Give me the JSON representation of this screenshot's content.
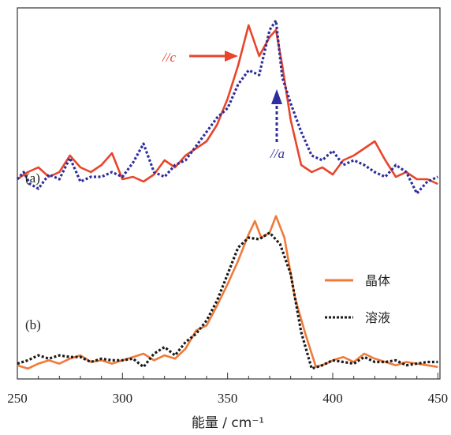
{
  "chart_data": {
    "type": "line",
    "xlabel": "能量 / cm⁻¹",
    "xlim": [
      250,
      451
    ],
    "x_ticks": [
      250,
      300,
      350,
      400,
      450
    ],
    "y_ticks_shown": false,
    "grid": false,
    "panels": [
      {
        "label": "(a)",
        "annotations": [
          {
            "text": "//c",
            "color": "#e8452b",
            "arrow": "solid-right",
            "points_to_x": 360
          },
          {
            "text": "//a",
            "color": "#2d2f9c",
            "arrow": "dotted-up",
            "points_to_x": 372
          }
        ],
        "series": [
          {
            "color": "#e8452b",
            "style": "solid",
            "x": [
              250,
              255,
              260,
              265,
              270,
              275,
              280,
              285,
              290,
              295,
              300,
              305,
              310,
              315,
              320,
              325,
              330,
              335,
              340,
              345,
              350,
              355,
              360,
              365,
              370,
              373,
              376,
              380,
              385,
              390,
              395,
              400,
              405,
              410,
              415,
              420,
              425,
              430,
              435,
              440,
              445,
              450
            ],
            "y": [
              0.3,
              0.33,
              0.35,
              0.31,
              0.33,
              0.4,
              0.35,
              0.33,
              0.36,
              0.41,
              0.3,
              0.31,
              0.29,
              0.32,
              0.38,
              0.35,
              0.4,
              0.43,
              0.46,
              0.53,
              0.64,
              0.78,
              0.95,
              0.82,
              0.9,
              0.93,
              0.78,
              0.55,
              0.36,
              0.33,
              0.35,
              0.32,
              0.38,
              0.4,
              0.43,
              0.46,
              0.38,
              0.31,
              0.33,
              0.3,
              0.3,
              0.28
            ]
          },
          {
            "color": "#2d2f9c",
            "style": "dotted",
            "x": [
              250,
              253,
              256,
              260,
              265,
              270,
              275,
              280,
              285,
              290,
              295,
              300,
              305,
              310,
              315,
              320,
              325,
              330,
              335,
              340,
              345,
              350,
              355,
              360,
              365,
              370,
              373,
              376,
              380,
              385,
              390,
              395,
              400,
              405,
              410,
              415,
              420,
              425,
              430,
              435,
              440,
              445,
              450
            ],
            "y": [
              0.3,
              0.33,
              0.28,
              0.26,
              0.32,
              0.3,
              0.39,
              0.29,
              0.31,
              0.31,
              0.33,
              0.31,
              0.37,
              0.45,
              0.33,
              0.31,
              0.36,
              0.38,
              0.44,
              0.5,
              0.56,
              0.6,
              0.7,
              0.76,
              0.74,
              0.93,
              0.97,
              0.73,
              0.62,
              0.5,
              0.4,
              0.38,
              0.42,
              0.36,
              0.38,
              0.36,
              0.33,
              0.31,
              0.36,
              0.33,
              0.24,
              0.29,
              0.31
            ]
          }
        ]
      },
      {
        "label": "(b)",
        "series": [
          {
            "name": "晶体",
            "color": "#f07a3a",
            "style": "solid",
            "x": [
              250,
              255,
              260,
              265,
              270,
              275,
              280,
              285,
              290,
              295,
              300,
              305,
              310,
              315,
              320,
              325,
              330,
              335,
              340,
              345,
              350,
              355,
              360,
              363,
              366,
              370,
              373,
              377,
              382,
              387,
              392,
              397,
              400,
              405,
              410,
              415,
              420,
              425,
              430,
              435,
              440,
              445,
              450
            ],
            "y": [
              0.03,
              0.01,
              0.04,
              0.06,
              0.04,
              0.07,
              0.09,
              0.05,
              0.06,
              0.04,
              0.06,
              0.08,
              0.1,
              0.06,
              0.09,
              0.07,
              0.13,
              0.24,
              0.27,
              0.39,
              0.52,
              0.66,
              0.82,
              0.9,
              0.8,
              0.83,
              0.93,
              0.8,
              0.44,
              0.22,
              0.02,
              0.04,
              0.06,
              0.08,
              0.05,
              0.1,
              0.07,
              0.05,
              0.03,
              0.05,
              0.04,
              0.03,
              0.02
            ]
          },
          {
            "name": "溶液",
            "color": "#1a1a1a",
            "style": "dotted",
            "x": [
              250,
              255,
              260,
              265,
              270,
              275,
              280,
              285,
              290,
              295,
              300,
              305,
              310,
              315,
              320,
              325,
              330,
              335,
              340,
              345,
              350,
              355,
              360,
              365,
              370,
              375,
              380,
              385,
              390,
              395,
              400,
              405,
              410,
              415,
              420,
              425,
              430,
              435,
              440,
              445,
              450
            ],
            "y": [
              0.04,
              0.06,
              0.09,
              0.07,
              0.09,
              0.08,
              0.08,
              0.05,
              0.07,
              0.06,
              0.06,
              0.07,
              0.02,
              0.1,
              0.14,
              0.09,
              0.17,
              0.22,
              0.3,
              0.42,
              0.58,
              0.74,
              0.8,
              0.79,
              0.83,
              0.76,
              0.58,
              0.23,
              0.01,
              0.03,
              0.06,
              0.05,
              0.04,
              0.08,
              0.05,
              0.05,
              0.06,
              0.03,
              0.04,
              0.05,
              0.05
            ]
          }
        ]
      }
    ],
    "legend": {
      "position": "right-middle",
      "entries": [
        "晶体",
        "溶液"
      ]
    }
  }
}
